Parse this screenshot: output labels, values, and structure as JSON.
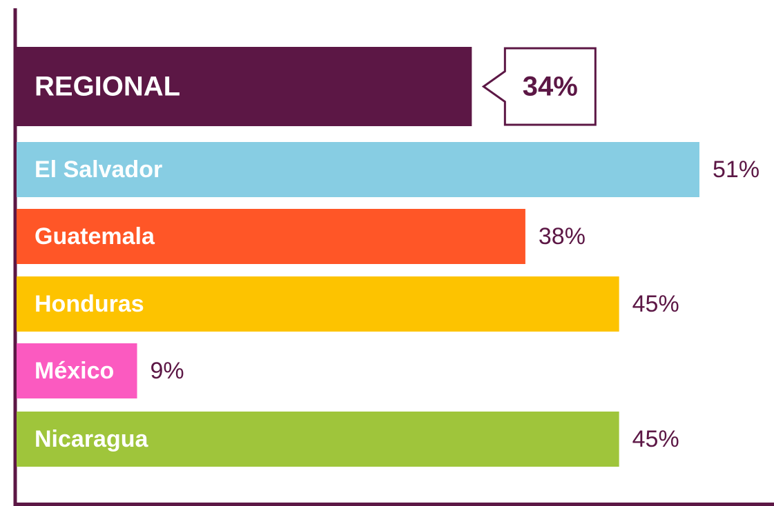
{
  "chart_data": {
    "type": "bar",
    "orientation": "horizontal",
    "categories": [
      "REGIONAL",
      "El Salvador",
      "Guatemala",
      "Honduras",
      "México",
      "Nicaragua"
    ],
    "values": [
      34,
      51,
      38,
      45,
      9,
      45
    ],
    "value_labels": [
      "34%",
      "51%",
      "38%",
      "45%",
      "9%",
      "45%"
    ],
    "colors": [
      "#5c1745",
      "#87cde3",
      "#ff5627",
      "#fdc300",
      "#fb5ac0",
      "#9fc53b"
    ]
  }
}
